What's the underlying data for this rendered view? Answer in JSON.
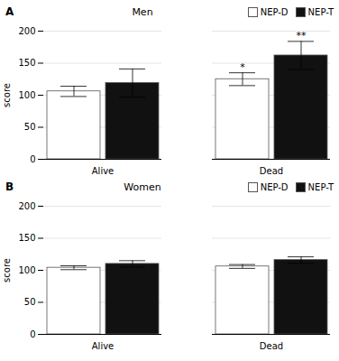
{
  "chart_data": [
    {
      "type": "bar",
      "title": "Men",
      "panel_label": "A",
      "ylabel": "score",
      "categories": [
        "Alive",
        "Dead"
      ],
      "series": [
        {
          "name": "NEP-D",
          "color": "#ffffff",
          "values": [
            106,
            125
          ],
          "errors": [
            8,
            10
          ],
          "annotations": [
            null,
            "*"
          ]
        },
        {
          "name": "NEP-T",
          "color": "#111111",
          "values": [
            119,
            162
          ],
          "errors": [
            22,
            22
          ],
          "annotations": [
            null,
            "**"
          ]
        }
      ],
      "ylim": [
        0,
        200
      ],
      "yticks": [
        0,
        50,
        100,
        150,
        200
      ],
      "grid": true,
      "legend": "upper right"
    },
    {
      "type": "bar",
      "title": "Women",
      "panel_label": "B",
      "ylabel": "score",
      "categories": [
        "Alive",
        "Dead"
      ],
      "series": [
        {
          "name": "NEP-D",
          "color": "#ffffff",
          "values": [
            104,
            106
          ],
          "errors": [
            3,
            3
          ]
        },
        {
          "name": "NEP-T",
          "color": "#111111",
          "values": [
            110,
            116
          ],
          "errors": [
            5,
            5
          ]
        }
      ],
      "ylim": [
        0,
        200
      ],
      "yticks": [
        0,
        50,
        100,
        150,
        200
      ],
      "grid": true,
      "legend": "upper right"
    }
  ]
}
